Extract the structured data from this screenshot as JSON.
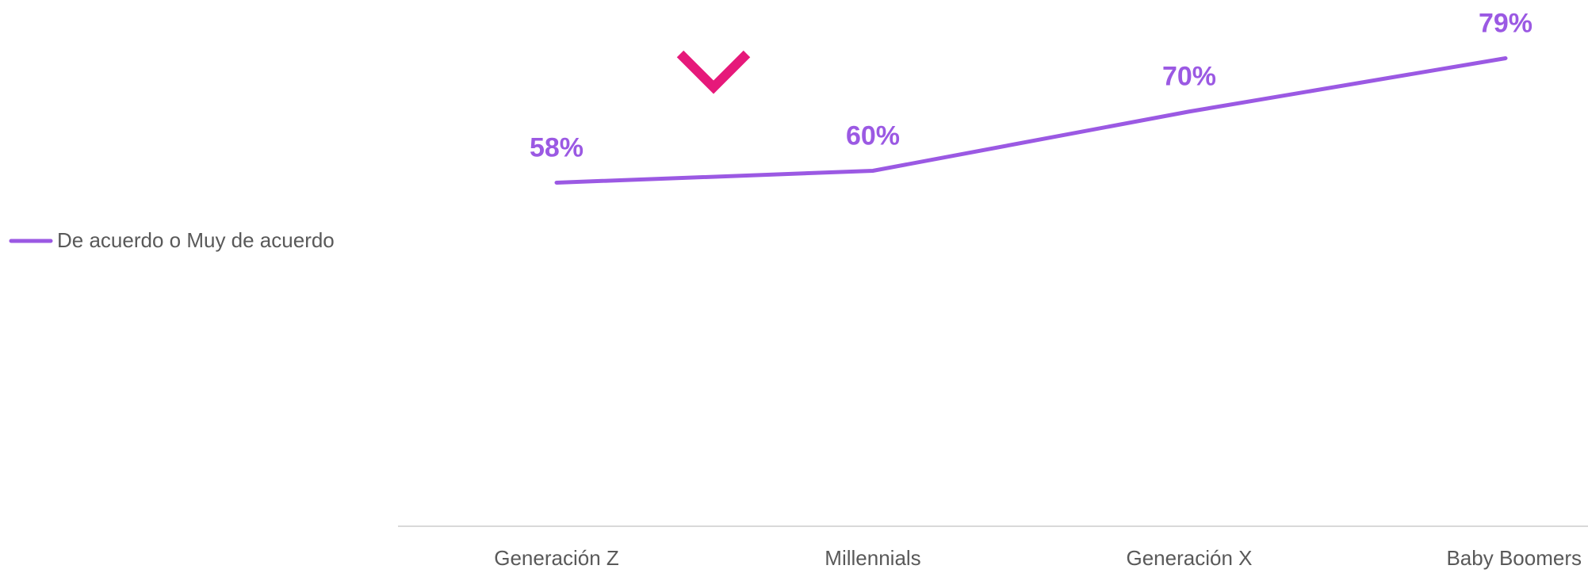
{
  "chart_data": {
    "type": "line",
    "categories": [
      "Generación Z",
      "Millennials",
      "Generación X",
      "Baby Boomers"
    ],
    "series": [
      {
        "name": "De acuerdo o Muy de acuerdo",
        "color": "#9b59e3",
        "values": [
          58,
          60,
          70,
          79
        ],
        "value_labels": [
          "58%",
          "60%",
          "70%",
          "79%"
        ]
      }
    ],
    "ylim": [
      0,
      80
    ],
    "grid": false,
    "legend": "left"
  }
}
